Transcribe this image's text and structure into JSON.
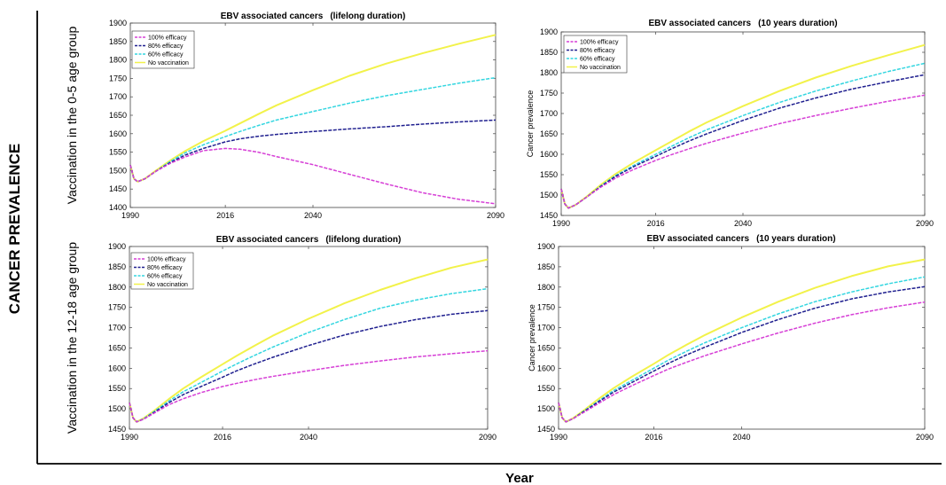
{
  "figure": {
    "outer_ylabel": "CANCER PREVALENCE",
    "outer_xlabel": "Year"
  },
  "chart_data": [
    {
      "type": "line",
      "title_main": "EBV associated cancers",
      "title_detail": "(lifelong duration)",
      "ylabel": "Vaccination in the 0-5 age group",
      "xlabel": "",
      "x_ticks": [
        1990,
        2016,
        2040,
        2090
      ],
      "y_ticks": [
        1400,
        1450,
        1500,
        1550,
        1600,
        1650,
        1700,
        1750,
        1800,
        1850,
        1900
      ],
      "xlim": [
        1990,
        2090
      ],
      "ylim": [
        1400,
        1900
      ],
      "legend_position": "top-left",
      "x": [
        1990,
        1991,
        1992,
        1994,
        1997,
        2001,
        2005,
        2010,
        2016,
        2020,
        2025,
        2030,
        2040,
        2050,
        2060,
        2070,
        2080,
        2090
      ],
      "series": [
        {
          "name": "100% efficacy",
          "color": "#d63fd6",
          "dash": "dash",
          "values": [
            1515,
            1478,
            1470,
            1478,
            1498,
            1520,
            1537,
            1554,
            1560,
            1558,
            1550,
            1538,
            1516,
            1490,
            1464,
            1440,
            1422,
            1410
          ]
        },
        {
          "name": "80% efficacy",
          "color": "#1f1f8f",
          "dash": "dash",
          "values": [
            1515,
            1478,
            1470,
            1478,
            1498,
            1522,
            1542,
            1560,
            1578,
            1586,
            1593,
            1598,
            1606,
            1613,
            1619,
            1626,
            1632,
            1637
          ]
        },
        {
          "name": "60% efficacy",
          "color": "#33d6e0",
          "dash": "dash",
          "values": [
            1515,
            1478,
            1470,
            1478,
            1498,
            1525,
            1548,
            1570,
            1592,
            1606,
            1622,
            1637,
            1660,
            1683,
            1703,
            1720,
            1737,
            1752
          ]
        },
        {
          "name": "No vaccination",
          "color": "#f2f24a",
          "dash": "solid",
          "values": [
            1515,
            1478,
            1470,
            1478,
            1500,
            1528,
            1553,
            1580,
            1608,
            1628,
            1653,
            1677,
            1718,
            1757,
            1790,
            1818,
            1844,
            1868
          ]
        }
      ]
    },
    {
      "type": "line",
      "title_main": "EBV associated cancers",
      "title_detail": "(10 years duration)",
      "ylabel": "Cancer prevalence",
      "xlabel": "",
      "x_ticks": [
        1990,
        2016,
        2040,
        2090
      ],
      "y_ticks": [
        1450,
        1500,
        1550,
        1600,
        1650,
        1700,
        1750,
        1800,
        1850,
        1900
      ],
      "xlim": [
        1990,
        2090
      ],
      "ylim": [
        1450,
        1900
      ],
      "legend_position": "top-left",
      "x": [
        1990,
        1991,
        1992,
        1994,
        1997,
        2001,
        2005,
        2010,
        2016,
        2020,
        2025,
        2030,
        2040,
        2050,
        2060,
        2070,
        2080,
        2090
      ],
      "series": [
        {
          "name": "100% efficacy",
          "color": "#d63fd6",
          "dash": "dash",
          "values": [
            1515,
            1478,
            1468,
            1476,
            1495,
            1520,
            1542,
            1563,
            1585,
            1598,
            1613,
            1627,
            1652,
            1675,
            1695,
            1713,
            1730,
            1745
          ]
        },
        {
          "name": "80% efficacy",
          "color": "#1f1f8f",
          "dash": "dash",
          "values": [
            1515,
            1478,
            1468,
            1476,
            1495,
            1522,
            1546,
            1570,
            1595,
            1612,
            1632,
            1650,
            1683,
            1713,
            1738,
            1760,
            1778,
            1795
          ]
        },
        {
          "name": "60% efficacy",
          "color": "#33d6e0",
          "dash": "dash",
          "values": [
            1515,
            1478,
            1468,
            1476,
            1495,
            1523,
            1548,
            1573,
            1600,
            1618,
            1640,
            1660,
            1695,
            1727,
            1755,
            1780,
            1803,
            1823
          ]
        },
        {
          "name": "No vaccination",
          "color": "#f2f24a",
          "dash": "solid",
          "values": [
            1515,
            1478,
            1468,
            1476,
            1496,
            1526,
            1552,
            1580,
            1610,
            1630,
            1655,
            1678,
            1718,
            1755,
            1788,
            1817,
            1843,
            1868
          ]
        }
      ]
    },
    {
      "type": "line",
      "title_main": "EBV associated cancers",
      "title_detail": "(lifelong duration)",
      "ylabel": "Vaccination in the 12-18 age group",
      "xlabel": "",
      "x_ticks": [
        1990,
        2016,
        2040,
        2090
      ],
      "y_ticks": [
        1450,
        1500,
        1550,
        1600,
        1650,
        1700,
        1750,
        1800,
        1850,
        1900
      ],
      "xlim": [
        1990,
        2090
      ],
      "ylim": [
        1450,
        1900
      ],
      "legend_position": "top-left",
      "x": [
        1990,
        1991,
        1992,
        1994,
        1997,
        2001,
        2005,
        2010,
        2016,
        2020,
        2025,
        2030,
        2040,
        2050,
        2060,
        2070,
        2080,
        2090
      ],
      "series": [
        {
          "name": "100% efficacy",
          "color": "#d63fd6",
          "dash": "dash",
          "values": [
            1515,
            1478,
            1468,
            1475,
            1490,
            1510,
            1525,
            1540,
            1555,
            1563,
            1572,
            1580,
            1594,
            1607,
            1618,
            1628,
            1636,
            1643
          ]
        },
        {
          "name": "80% efficacy",
          "color": "#1f1f8f",
          "dash": "dash",
          "values": [
            1515,
            1478,
            1468,
            1475,
            1492,
            1515,
            1535,
            1555,
            1578,
            1594,
            1611,
            1627,
            1656,
            1682,
            1703,
            1720,
            1733,
            1742
          ]
        },
        {
          "name": "60% efficacy",
          "color": "#33d6e0",
          "dash": "dash",
          "values": [
            1515,
            1478,
            1468,
            1476,
            1494,
            1519,
            1542,
            1565,
            1593,
            1611,
            1632,
            1652,
            1688,
            1720,
            1748,
            1768,
            1784,
            1796
          ]
        },
        {
          "name": "No vaccination",
          "color": "#f2f24a",
          "dash": "solid",
          "values": [
            1515,
            1478,
            1468,
            1477,
            1496,
            1524,
            1550,
            1578,
            1610,
            1631,
            1656,
            1680,
            1722,
            1760,
            1793,
            1822,
            1848,
            1868
          ]
        }
      ]
    },
    {
      "type": "line",
      "title_main": "EBV associated cancers",
      "title_detail": "(10 years duration)",
      "ylabel": "Cancer prevalence",
      "xlabel": "",
      "x_ticks": [
        1990,
        2016,
        2040,
        2090
      ],
      "y_ticks": [
        1450,
        1500,
        1550,
        1600,
        1650,
        1700,
        1750,
        1800,
        1850,
        1900
      ],
      "xlim": [
        1990,
        2090
      ],
      "ylim": [
        1450,
        1900
      ],
      "legend_position": "none",
      "x": [
        1990,
        1991,
        1992,
        1994,
        1997,
        2001,
        2005,
        2010,
        2016,
        2020,
        2025,
        2030,
        2040,
        2050,
        2060,
        2070,
        2080,
        2090
      ],
      "series": [
        {
          "name": "100% efficacy",
          "color": "#d63fd6",
          "dash": "dash",
          "values": [
            1515,
            1478,
            1468,
            1476,
            1492,
            1514,
            1535,
            1557,
            1582,
            1598,
            1615,
            1631,
            1660,
            1687,
            1711,
            1732,
            1749,
            1763
          ]
        },
        {
          "name": "80% efficacy",
          "color": "#1f1f8f",
          "dash": "dash",
          "values": [
            1515,
            1478,
            1468,
            1476,
            1494,
            1518,
            1541,
            1565,
            1593,
            1612,
            1633,
            1652,
            1688,
            1720,
            1748,
            1771,
            1788,
            1801
          ]
        },
        {
          "name": "60% efficacy",
          "color": "#33d6e0",
          "dash": "dash",
          "values": [
            1515,
            1478,
            1468,
            1476,
            1495,
            1520,
            1545,
            1570,
            1600,
            1620,
            1642,
            1663,
            1700,
            1734,
            1764,
            1788,
            1808,
            1825
          ]
        },
        {
          "name": "No vaccination",
          "color": "#f2f24a",
          "dash": "solid",
          "values": [
            1515,
            1478,
            1468,
            1477,
            1497,
            1525,
            1551,
            1579,
            1611,
            1633,
            1658,
            1682,
            1725,
            1764,
            1798,
            1827,
            1851,
            1868
          ]
        }
      ]
    }
  ]
}
